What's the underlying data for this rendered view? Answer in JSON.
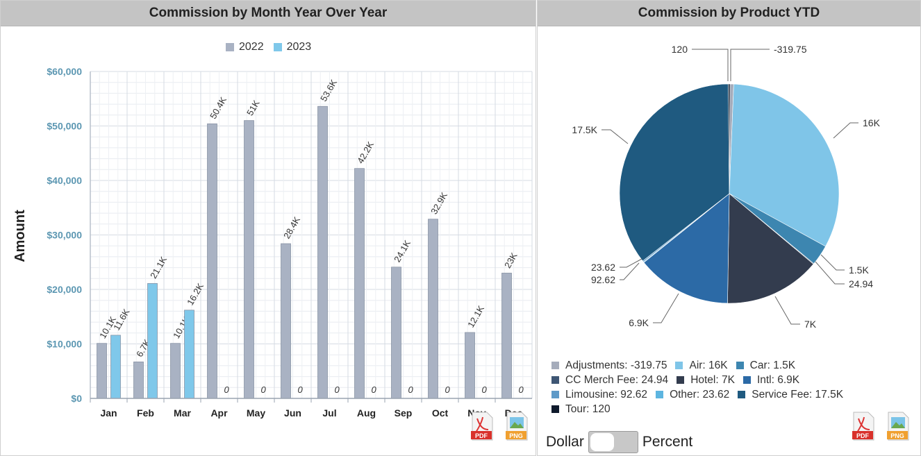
{
  "bar_panel": {
    "title": "Commission by Month Year Over Year",
    "legend": [
      {
        "name": "2022",
        "color": "#a9b2c3"
      },
      {
        "name": "2023",
        "color": "#7fc8ea"
      }
    ],
    "ylabel": "Amount",
    "export_pdf": "PDF",
    "export_png": "PNG"
  },
  "pie_panel": {
    "title": "Commission by Product YTD",
    "export_pdf": "PDF",
    "export_png": "PNG",
    "toggle": {
      "left_label": "Dollar",
      "right_label": "Percent"
    }
  },
  "chart_data": [
    {
      "type": "bar",
      "title": "Commission by Month Year Over Year",
      "xlabel": "",
      "ylabel": "Amount",
      "categories": [
        "Jan",
        "Feb",
        "Mar",
        "Apr",
        "May",
        "Jun",
        "Jul",
        "Aug",
        "Sep",
        "Oct",
        "Nov",
        "Dec"
      ],
      "ylim": [
        0,
        60000
      ],
      "yticks": [
        "$0",
        "$10,000",
        "$20,000",
        "$30,000",
        "$40,000",
        "$50,000",
        "$60,000"
      ],
      "grid": true,
      "legend_position": "top-center",
      "series": [
        {
          "name": "2022",
          "color": "#a9b2c3",
          "values": [
            10100,
            6700,
            10100,
            50400,
            51000,
            28400,
            53600,
            42200,
            24100,
            32900,
            12100,
            23000
          ],
          "labels": [
            "10.1K",
            "6.7K",
            "10.1K",
            "50.4K",
            "51K",
            "28.4K",
            "53.6K",
            "42.2K",
            "24.1K",
            "32.9K",
            "12.1K",
            "23K"
          ]
        },
        {
          "name": "2023",
          "color": "#7fc8ea",
          "values": [
            11600,
            21100,
            16200,
            0,
            0,
            0,
            0,
            0,
            0,
            0,
            0,
            0
          ],
          "labels": [
            "11.6K",
            "21.1K",
            "16.2K",
            "0",
            "0",
            "0",
            "0",
            "0",
            "0",
            "0",
            "0",
            "0"
          ]
        }
      ]
    },
    {
      "type": "pie",
      "title": "Commission by Product YTD",
      "legend_position": "bottom",
      "slices": [
        {
          "name": "Adjustments",
          "value": -319.75,
          "label": "-319.75",
          "legend": "Adjustments: -319.75",
          "color": "#a5acbb"
        },
        {
          "name": "Air",
          "value": 16000,
          "label": "16K",
          "legend": "Air: 16K",
          "color": "#7fc5e8"
        },
        {
          "name": "Car",
          "value": 1500,
          "label": "1.5K",
          "legend": "Car: 1.5K",
          "color": "#3d86b0"
        },
        {
          "name": "CC Merch Fee",
          "value": 24.94,
          "label": "24.94",
          "legend": "CC Merch Fee: 24.94",
          "color": "#3e5674"
        },
        {
          "name": "Hotel",
          "value": 7000,
          "label": "7K",
          "legend": "Hotel: 7K",
          "color": "#333c4e"
        },
        {
          "name": "Intl",
          "value": 6900,
          "label": "6.9K",
          "legend": "Intl: 6.9K",
          "color": "#2c6aa6"
        },
        {
          "name": "Limousine",
          "value": 92.62,
          "label": "92.62",
          "legend": "Limousine: 92.62",
          "color": "#5e9ac8"
        },
        {
          "name": "Other",
          "value": 23.62,
          "label": "23.62",
          "legend": "Other: 23.62",
          "color": "#5db5e0"
        },
        {
          "name": "Service Fee",
          "value": 17500,
          "label": "17.5K",
          "legend": "Service Fee: 17.5K",
          "color": "#1f5a80"
        },
        {
          "name": "Tour",
          "value": 120,
          "label": "120",
          "legend": "Tour: 120",
          "color": "#0e1a2c"
        }
      ]
    }
  ]
}
